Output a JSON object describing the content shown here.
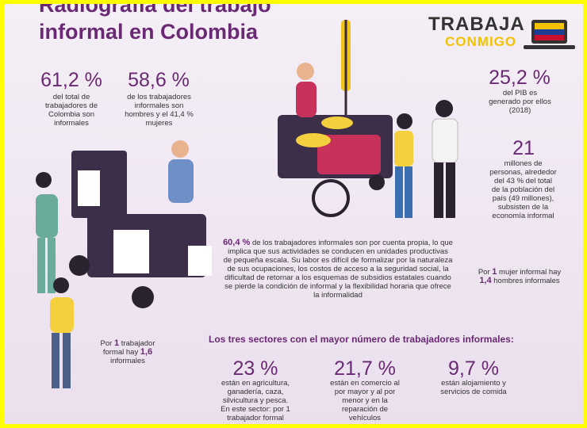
{
  "header": {
    "title_line1": "Radiografía del trabajo",
    "title_line2": "informal en Colombia",
    "logo_top": "TRABAJA",
    "logo_bottom": "CONMIGO"
  },
  "stats": [
    {
      "number": "61,2 %",
      "text": "del total de trabajadores de Colombia son informales"
    },
    {
      "number": "58,6 %",
      "text": "de los trabajadores informales son hombres y el 41,4 % mujeres"
    },
    {
      "number": "25,2 %",
      "text": "del PIB es generado por ellos (2018)"
    },
    {
      "number": "21",
      "text": "millones de personas, alrededor del 43 % del total de la población del país (49 millones), subsisten de la economía informal"
    }
  ],
  "paragraph": {
    "highlight": "60,4 %",
    "text": "de los trabajadores informales son por cuenta propia, lo que implica que sus actividades se conducen en unidades productivas de pequeña escala. Su labor es difícil de formalizar por la naturaleza de sus ocupaciones, los costos de acceso a la seguridad social, la dificultad de retornar a los esquemas de subsidios estatales cuando se pierde la condición de informal y la flexibilidad horaria que ofrece la informalidad"
  },
  "ratio_women": {
    "prefix": "Por",
    "num1": "1",
    "middle": "mujer informal hay",
    "num2": "1,4",
    "suffix": "hombres informales"
  },
  "ratio_formal": {
    "prefix": "Por",
    "num1": "1",
    "middle": "trabajador formal hay",
    "num2": "1,6",
    "suffix": "informales"
  },
  "sectors": {
    "heading": "Los tres sectores con el mayor número de trabajadores informales:",
    "items": [
      {
        "number": "23 %",
        "text": "están en agricultura, ganadería, caza, silvicultura y pesca. En este sector: por 1 trabajador formal"
      },
      {
        "number": "21,7 %",
        "text": "están en comercio al por mayor y al por menor y en la reparación de vehículos automotores y"
      },
      {
        "number": "9,7 %",
        "text": "están alojamiento y servicios de comida"
      }
    ]
  }
}
